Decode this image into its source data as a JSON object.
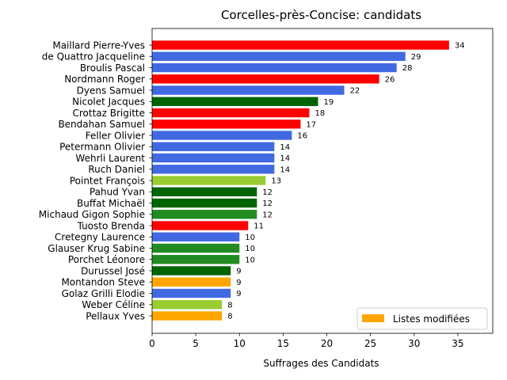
{
  "chart_data": {
    "type": "bar",
    "orientation": "horizontal",
    "title": "Corcelles-près-Concise: candidats",
    "xlabel": "Suffrages des Candidats",
    "ylabel": "",
    "xlim": [
      0,
      39
    ],
    "xticks": [
      0,
      5,
      10,
      15,
      20,
      25,
      30,
      35
    ],
    "grid": false,
    "categories": [
      "Maillard Pierre-Yves",
      "de Quattro Jacqueline",
      "Broulis Pascal",
      "Nordmann Roger",
      "Dyens Samuel",
      "Nicolet Jacques",
      "Crottaz Brigitte",
      "Bendahan Samuel",
      "Feller Olivier",
      "Petermann Olivier",
      "Wehrli Laurent",
      "Ruch Daniel",
      "Pointet François",
      "Pahud Yvan",
      "Buffat Michaël",
      "Michaud Gigon Sophie",
      "Tuosto Brenda",
      "Cretegny Laurence",
      "Glauser Krug Sabine",
      "Porchet Léonore",
      "Durussel José",
      "Montandon Steve",
      "Golaz Grilli Elodie",
      "Weber Céline",
      "Pellaux Yves"
    ],
    "values": [
      34,
      29,
      28,
      26,
      22,
      19,
      18,
      17,
      16,
      14,
      14,
      14,
      13,
      12,
      12,
      12,
      11,
      10,
      10,
      10,
      9,
      9,
      9,
      8,
      8
    ],
    "colors": [
      "#ff0000",
      "#4169e1",
      "#4169e1",
      "#ff0000",
      "#4169e1",
      "#006400",
      "#ff0000",
      "#ff0000",
      "#4169e1",
      "#4169e1",
      "#4169e1",
      "#4169e1",
      "#9acd32",
      "#006400",
      "#006400",
      "#228b22",
      "#ff0000",
      "#4169e1",
      "#228b22",
      "#228b22",
      "#006400",
      "#ffa500",
      "#4169e1",
      "#9acd32",
      "#ffa500"
    ],
    "legend": {
      "placement": "lower-right",
      "entries": [
        {
          "label": "Listes modifiées",
          "color": "#ffa500"
        }
      ]
    }
  }
}
